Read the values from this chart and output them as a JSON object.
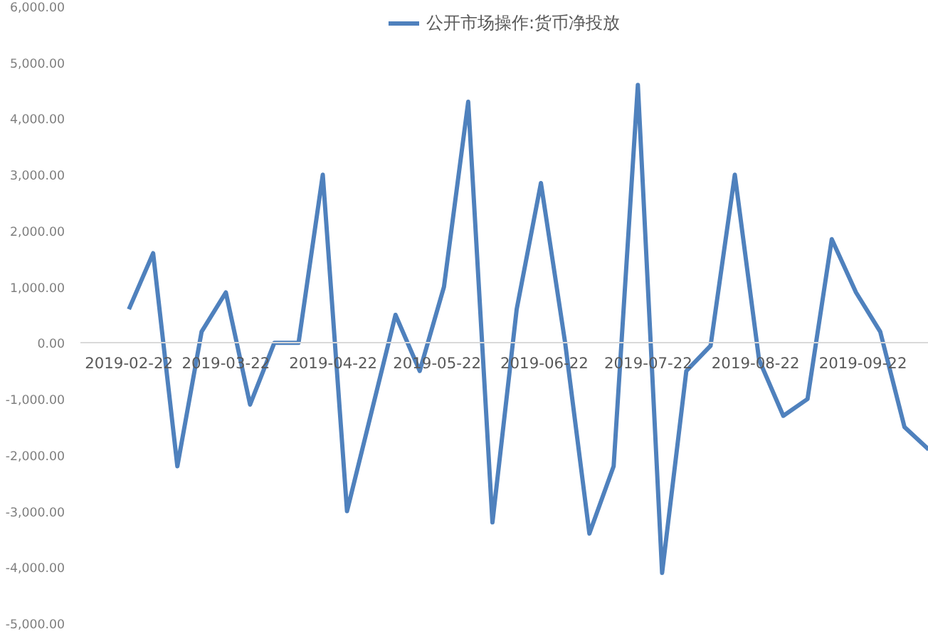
{
  "chart_data": {
    "type": "line",
    "legend": "top",
    "grid": false,
    "marker": "none",
    "line_style": "solid",
    "x": [
      "2019-02-22",
      "2019-03-01",
      "2019-03-08",
      "2019-03-15",
      "2019-03-22",
      "2019-03-29",
      "2019-04-05",
      "2019-04-12",
      "2019-04-19",
      "2019-04-26",
      "2019-05-03",
      "2019-05-10",
      "2019-05-17",
      "2019-05-24",
      "2019-05-31",
      "2019-06-07",
      "2019-06-14",
      "2019-06-21",
      "2019-06-28",
      "2019-07-05",
      "2019-07-12",
      "2019-07-19",
      "2019-07-26",
      "2019-08-02",
      "2019-08-09",
      "2019-08-16",
      "2019-08-23",
      "2019-08-30",
      "2019-09-06",
      "2019-09-13",
      "2019-09-20",
      "2019-09-27",
      "2019-10-04",
      "2019-10-11"
    ],
    "series": [
      {
        "name": "公开市场操作:货币净投放",
        "color": "#4f81bd",
        "values": [
          600,
          1600,
          -2200,
          200,
          900,
          -1100,
          0,
          0,
          3000,
          -3000,
          -1250,
          500,
          -500,
          1000,
          4300,
          -3200,
          600,
          2850,
          0,
          -3400,
          -2200,
          4600,
          -4100,
          -500,
          -50,
          3000,
          -300,
          -1300,
          -1000,
          1850,
          900,
          200,
          -1500,
          -1900
        ]
      }
    ],
    "xlim": [
      "2019-02-08",
      "2019-10-11"
    ],
    "xticks": [
      "2019-02-22",
      "2019-03-22",
      "2019-04-22",
      "2019-05-22",
      "2019-06-22",
      "2019-07-22",
      "2019-08-22",
      "2019-09-22"
    ],
    "ylim": [
      -5000,
      6000
    ],
    "yticks": [
      {
        "value": -5000,
        "label": "-5,000.00"
      },
      {
        "value": -4000,
        "label": "-4,000.00"
      },
      {
        "value": -3000,
        "label": "-3,000.00"
      },
      {
        "value": -2000,
        "label": "-2,000.00"
      },
      {
        "value": -1000,
        "label": "-1,000.00"
      },
      {
        "value": 0,
        "label": "0.00"
      },
      {
        "value": 1000,
        "label": "1,000.00"
      },
      {
        "value": 2000,
        "label": "2,000.00"
      },
      {
        "value": 3000,
        "label": "3,000.00"
      },
      {
        "value": 4000,
        "label": "4,000.00"
      },
      {
        "value": 5000,
        "label": "5,000.00"
      },
      {
        "value": 6000,
        "label": "6,000.00"
      }
    ]
  }
}
